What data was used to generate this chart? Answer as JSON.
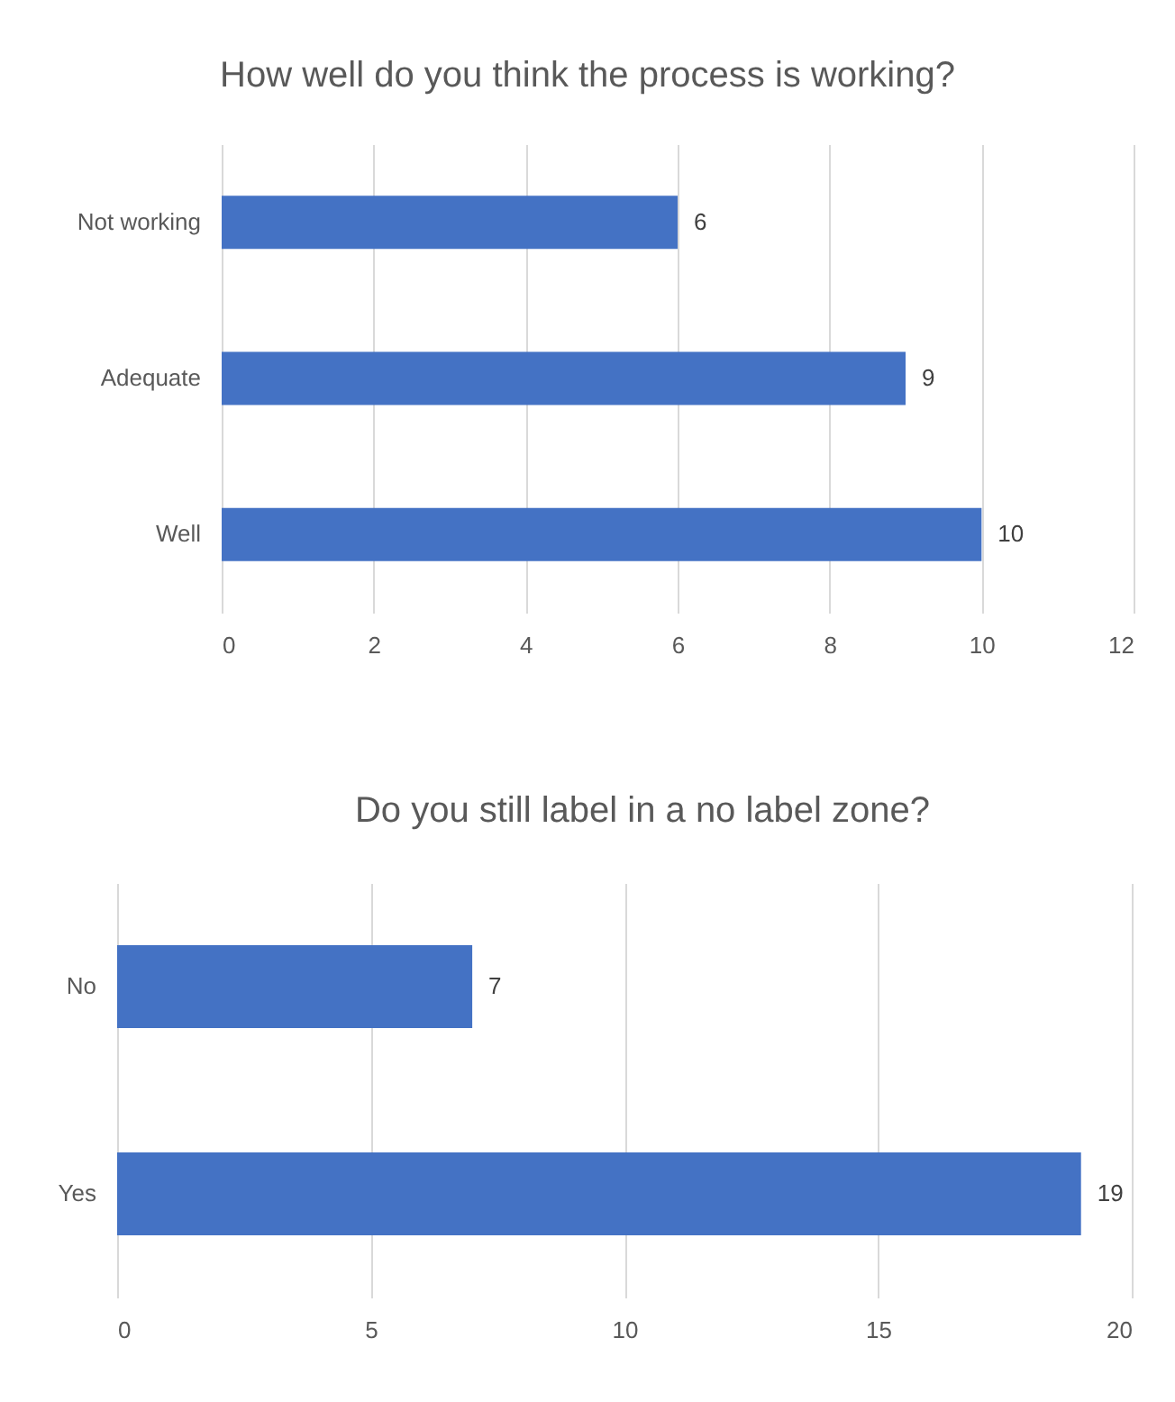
{
  "chart_data": [
    {
      "type": "bar",
      "orientation": "horizontal",
      "title": "How well do you think the process is working?",
      "categories": [
        "Not working",
        "Adequate",
        "Well"
      ],
      "values": [
        6,
        9,
        10
      ],
      "color": "#4472c4",
      "xlim": [
        0,
        12
      ],
      "xticks": [
        0,
        2,
        4,
        6,
        8,
        10,
        12
      ],
      "grid": "x",
      "data_labels": true
    },
    {
      "type": "bar",
      "orientation": "horizontal",
      "title": "Do you still label in a no label zone?",
      "categories": [
        "No",
        "Yes"
      ],
      "values": [
        7,
        19
      ],
      "color": "#4472c4",
      "xlim": [
        0,
        20
      ],
      "xticks": [
        0,
        5,
        10,
        15,
        20
      ],
      "grid": "x",
      "data_labels": true
    }
  ]
}
